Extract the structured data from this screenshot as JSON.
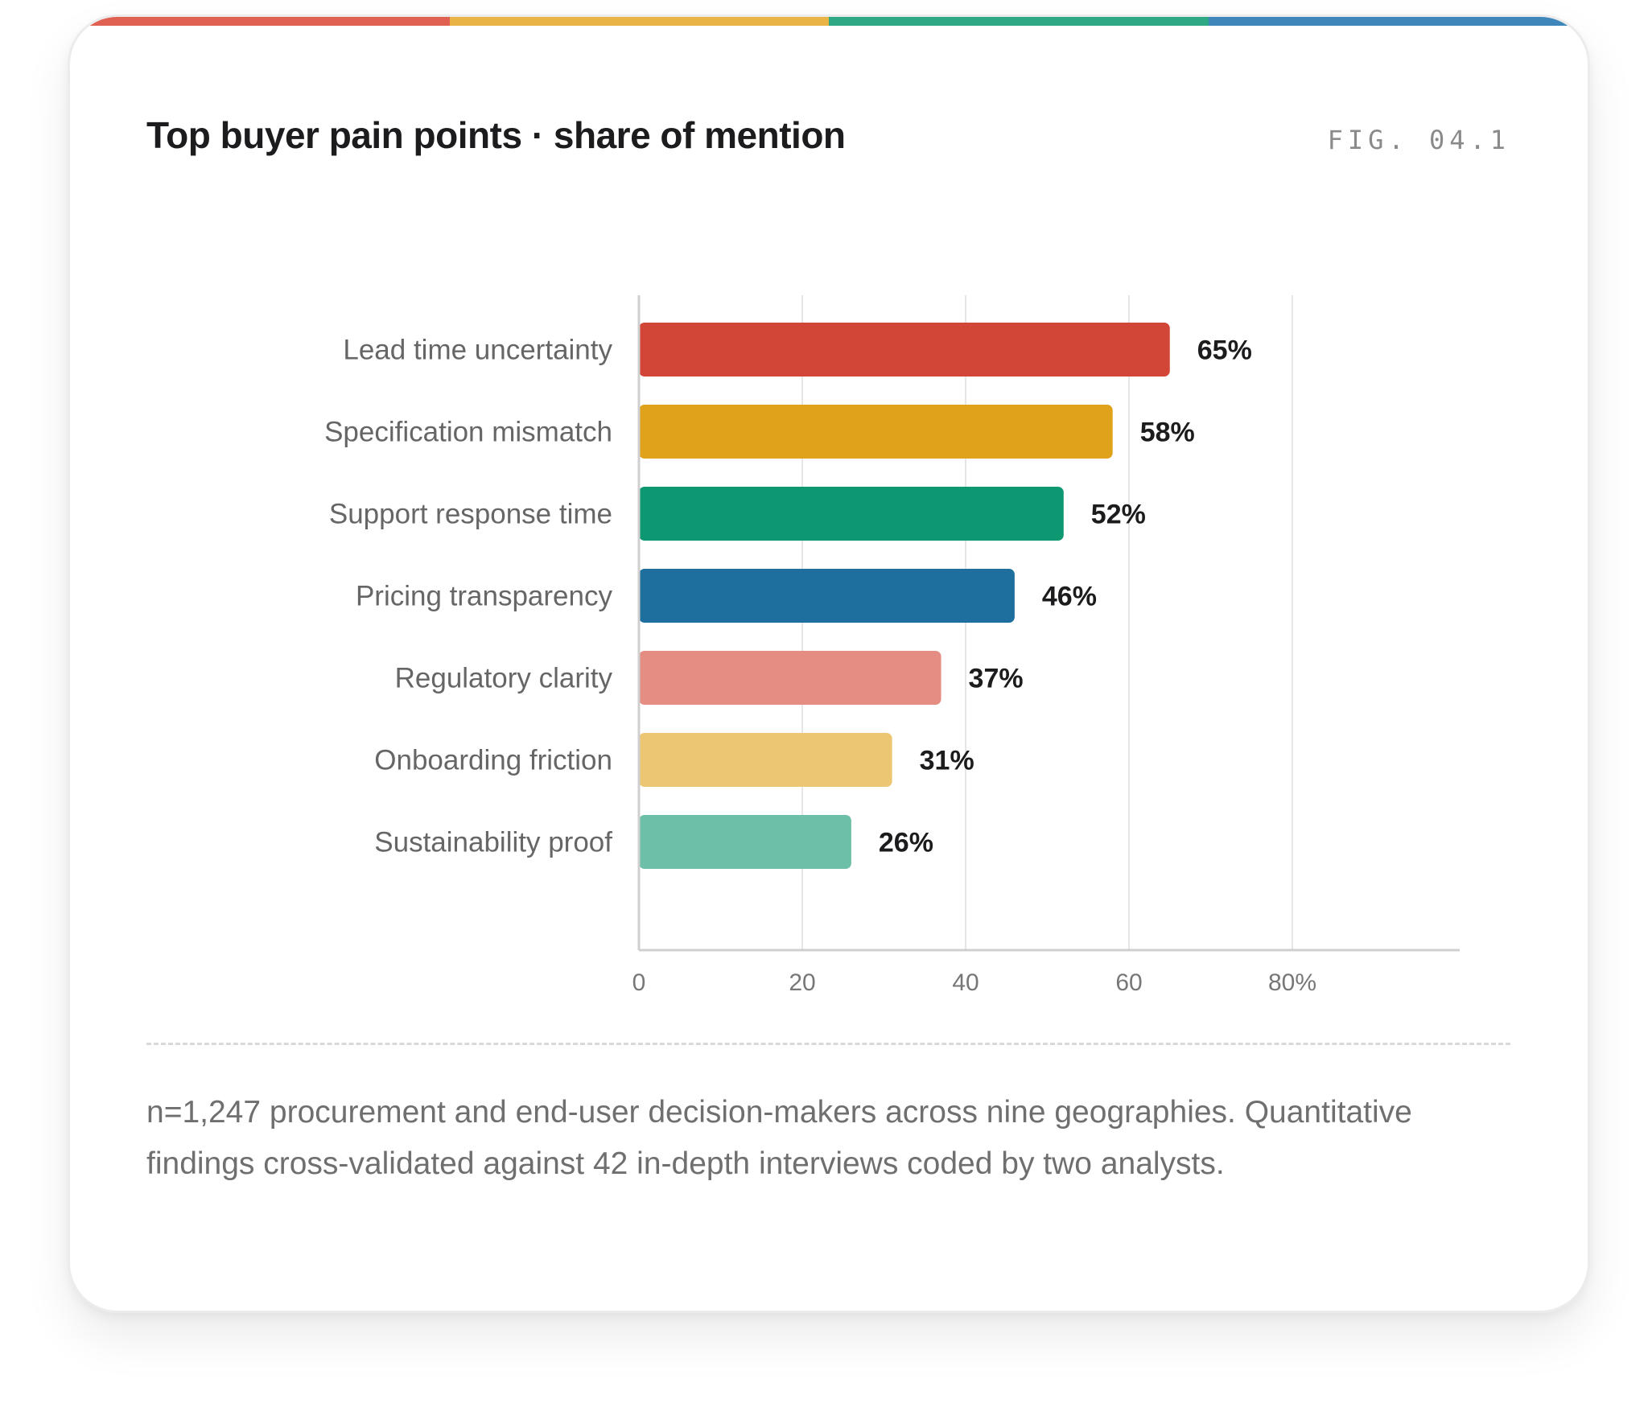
{
  "title": "Top buyer pain points · share of mention",
  "fig_label": "FIG. 04.1",
  "accent_colors": [
    "#e06052",
    "#e9b445",
    "#2fa886",
    "#3f87bb"
  ],
  "footnote": "n=1,247 procurement and end-user decision-makers across nine geographies. Quantitative findings cross-validated against 42 in-depth interviews coded by two analysts.",
  "chart_data": {
    "type": "bar",
    "orientation": "horizontal",
    "categories": [
      "Lead time uncertainty",
      "Specification mismatch",
      "Support response time",
      "Pricing transparency",
      "Regulatory clarity",
      "Onboarding friction",
      "Sustainability proof"
    ],
    "values": [
      65,
      58,
      52,
      46,
      37,
      31,
      26
    ],
    "value_labels": [
      "65%",
      "58%",
      "52%",
      "46%",
      "37%",
      "31%",
      "26%"
    ],
    "colors": [
      "#d24637",
      "#e0a11b",
      "#0e9872",
      "#1f6f9e",
      "#e58d82",
      "#ecc673",
      "#6dbfa7"
    ],
    "x_ticks": [
      0,
      20,
      40,
      60,
      80
    ],
    "x_tick_labels": [
      "0",
      "20",
      "40",
      "60",
      "80%"
    ],
    "xlim": [
      0,
      100
    ],
    "grid": true,
    "xlabel": "",
    "ylabel": ""
  }
}
